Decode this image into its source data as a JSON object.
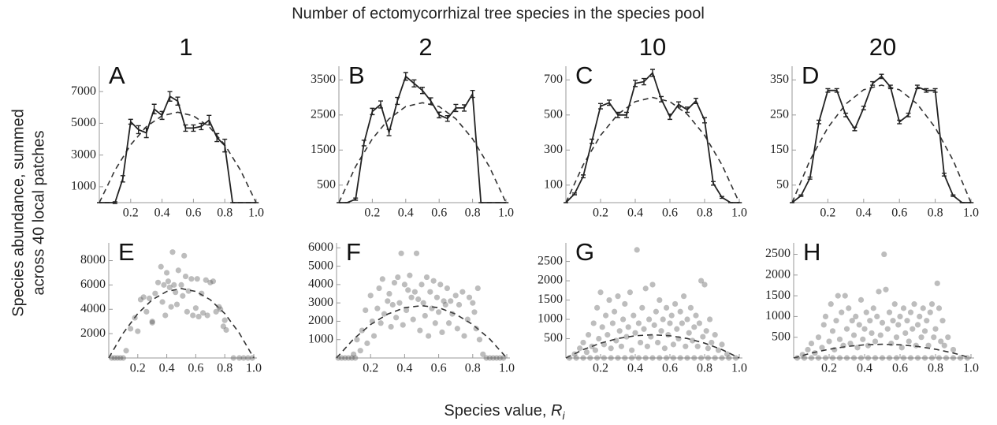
{
  "title": "Number of ectomycorrhizal tree species in the species pool",
  "column_headers": [
    "1",
    "2",
    "10",
    "20"
  ],
  "y_label": [
    "Species abundance, summed",
    "across 40 local patches"
  ],
  "x_label": {
    "text": "Species value, ",
    "variable": "R",
    "subscript": "i"
  },
  "chart_data": [
    {
      "type": "line",
      "label": "A",
      "x": [
        0,
        0.05,
        0.1,
        0.15,
        0.2,
        0.25,
        0.3,
        0.35,
        0.4,
        0.45,
        0.5,
        0.55,
        0.6,
        0.65,
        0.7,
        0.75,
        0.8,
        0.85,
        0.9,
        0.95,
        1
      ],
      "values": [
        0,
        0,
        0,
        1500,
        5100,
        4600,
        4400,
        5900,
        5500,
        6700,
        6400,
        4700,
        4700,
        4800,
        5200,
        4100,
        3600,
        0,
        0,
        0,
        0
      ],
      "errors": [
        0,
        0,
        50,
        200,
        150,
        250,
        300,
        300,
        250,
        300,
        250,
        200,
        200,
        200,
        300,
        250,
        400,
        0,
        0,
        0,
        0
      ],
      "fit": {
        "x": [
          0,
          0.1,
          0.2,
          0.3,
          0.4,
          0.5,
          0.6,
          0.7,
          0.8,
          0.9,
          1
        ],
        "values": [
          0,
          2050,
          3650,
          4790,
          5470,
          5700,
          5470,
          4790,
          3650,
          2050,
          0
        ]
      },
      "xlim": [
        0,
        1
      ],
      "ylim": [
        0,
        8400
      ],
      "xticks": [
        0.2,
        0.4,
        0.6,
        0.8,
        {
          "value": 1,
          "label": "1.0"
        }
      ],
      "yticks": [
        1000,
        3000,
        5000,
        7000
      ]
    },
    {
      "type": "line",
      "label": "B",
      "x": [
        0,
        0.05,
        0.1,
        0.15,
        0.2,
        0.25,
        0.3,
        0.35,
        0.4,
        0.45,
        0.5,
        0.55,
        0.6,
        0.65,
        0.7,
        0.75,
        0.8,
        0.85,
        0.9,
        0.95,
        1
      ],
      "values": [
        0,
        0,
        100,
        1700,
        2600,
        2800,
        2000,
        2900,
        3600,
        3400,
        3200,
        2900,
        2500,
        2400,
        2700,
        2700,
        3100,
        0,
        0,
        0,
        0
      ],
      "errors": [
        0,
        0,
        30,
        80,
        90,
        100,
        90,
        100,
        110,
        100,
        90,
        90,
        80,
        80,
        100,
        90,
        100,
        0,
        0,
        0,
        0
      ],
      "fit": {
        "x": [
          0,
          0.1,
          0.2,
          0.3,
          0.4,
          0.5,
          0.6,
          0.7,
          0.8,
          0.9,
          1
        ],
        "values": [
          0,
          1030,
          1820,
          2390,
          2740,
          2850,
          2740,
          2390,
          1820,
          1030,
          0
        ]
      },
      "xlim": [
        0,
        1
      ],
      "ylim": [
        0,
        3800
      ],
      "xticks": [
        0.2,
        0.4,
        0.6,
        0.8,
        {
          "value": 1,
          "label": "1.0"
        }
      ],
      "yticks": [
        500,
        1500,
        2500,
        3500
      ]
    },
    {
      "type": "line",
      "label": "C",
      "x": [
        0,
        0.05,
        0.1,
        0.15,
        0.2,
        0.25,
        0.3,
        0.35,
        0.4,
        0.45,
        0.5,
        0.55,
        0.6,
        0.65,
        0.7,
        0.75,
        0.8,
        0.85,
        0.9,
        0.95,
        1
      ],
      "values": [
        0,
        50,
        150,
        350,
        550,
        570,
        500,
        500,
        680,
        690,
        740,
        590,
        490,
        560,
        530,
        580,
        470,
        110,
        30,
        0,
        0
      ],
      "errors": [
        0,
        5,
        8,
        12,
        15,
        15,
        15,
        15,
        18,
        18,
        20,
        15,
        15,
        15,
        15,
        15,
        15,
        10,
        5,
        0,
        0
      ],
      "fit": {
        "x": [
          0,
          0.1,
          0.2,
          0.3,
          0.4,
          0.5,
          0.6,
          0.7,
          0.8,
          0.9,
          1
        ],
        "values": [
          0,
          216,
          384,
          504,
          576,
          600,
          576,
          504,
          384,
          216,
          0
        ]
      },
      "xlim": [
        0,
        1
      ],
      "ylim": [
        0,
        760
      ],
      "xticks": [
        0.2,
        0.4,
        0.6,
        0.8,
        {
          "value": 1,
          "label": "1.0"
        }
      ],
      "yticks": [
        100,
        300,
        500,
        700
      ]
    },
    {
      "type": "line",
      "label": "D",
      "x": [
        0,
        0.05,
        0.1,
        0.15,
        0.2,
        0.25,
        0.3,
        0.35,
        0.4,
        0.45,
        0.5,
        0.55,
        0.6,
        0.65,
        0.7,
        0.75,
        0.8,
        0.85,
        0.9,
        0.95,
        1
      ],
      "values": [
        0,
        20,
        70,
        230,
        320,
        320,
        250,
        210,
        270,
        340,
        360,
        330,
        230,
        250,
        330,
        320,
        320,
        80,
        20,
        0,
        0
      ],
      "errors": [
        0,
        2,
        3,
        5,
        5,
        5,
        5,
        5,
        5,
        5,
        6,
        5,
        5,
        5,
        5,
        5,
        5,
        4,
        2,
        0,
        0
      ],
      "fit": {
        "x": [
          0,
          0.1,
          0.2,
          0.3,
          0.4,
          0.5,
          0.6,
          0.7,
          0.8,
          0.9,
          1
        ],
        "values": [
          0,
          121,
          214,
          281,
          322,
          335,
          322,
          281,
          214,
          121,
          0
        ]
      },
      "xlim": [
        0,
        1
      ],
      "ylim": [
        0,
        380
      ],
      "xticks": [
        0.2,
        0.4,
        0.6,
        0.8,
        {
          "value": 1,
          "label": "1.0"
        }
      ],
      "yticks": [
        50,
        150,
        250,
        350
      ]
    },
    {
      "type": "scatter",
      "label": "E",
      "x": [
        0.02,
        0.04,
        0.06,
        0.08,
        0.1,
        0.86,
        0.9,
        0.93,
        0.96,
        0.99,
        0.12,
        0.15,
        0.18,
        0.2,
        0.22,
        0.24,
        0.26,
        0.28,
        0.3,
        0.3,
        0.32,
        0.34,
        0.36,
        0.37,
        0.38,
        0.39,
        0.4,
        0.41,
        0.42,
        0.43,
        0.44,
        0.45,
        0.46,
        0.47,
        0.48,
        0.5,
        0.51,
        0.52,
        0.53,
        0.54,
        0.55,
        0.57,
        0.58,
        0.6,
        0.61,
        0.62,
        0.64,
        0.65,
        0.67,
        0.68,
        0.7,
        0.72,
        0.74,
        0.76,
        0.77,
        0.79,
        0.8,
        0.81
      ],
      "values": [
        0,
        0,
        0,
        0,
        0,
        0,
        0,
        0,
        0,
        0,
        600,
        2400,
        3300,
        2200,
        4800,
        5000,
        3800,
        4900,
        3000,
        2900,
        5300,
        6200,
        7500,
        4600,
        6000,
        3500,
        7000,
        6300,
        5800,
        4200,
        8700,
        6000,
        5400,
        4400,
        7200,
        6000,
        5100,
        8400,
        6700,
        3800,
        5500,
        6500,
        3500,
        4100,
        6500,
        3400,
        5300,
        3700,
        6400,
        3500,
        6200,
        6300,
        3800,
        4200,
        4000,
        2600,
        3100,
        2300
      ],
      "fit": {
        "x": [
          0,
          0.1,
          0.2,
          0.3,
          0.4,
          0.5,
          0.6,
          0.7,
          0.8,
          0.9,
          1
        ],
        "values": [
          0,
          2050,
          3650,
          4790,
          5470,
          5700,
          5470,
          4790,
          3650,
          2050,
          0
        ]
      },
      "xlim": [
        0,
        1
      ],
      "ylim": [
        0,
        9200
      ],
      "xticks": [
        0.2,
        0.4,
        0.6,
        0.8,
        {
          "value": 1,
          "label": "1.0"
        }
      ],
      "yticks": [
        2000,
        4000,
        6000,
        8000
      ]
    },
    {
      "type": "scatter",
      "label": "F",
      "x": [
        0.01,
        0.03,
        0.05,
        0.07,
        0.09,
        0.11,
        0.88,
        0.9,
        0.92,
        0.94,
        0.96,
        0.98,
        0.1,
        0.12,
        0.14,
        0.15,
        0.17,
        0.18,
        0.2,
        0.21,
        0.22,
        0.24,
        0.25,
        0.26,
        0.27,
        0.28,
        0.3,
        0.31,
        0.32,
        0.33,
        0.34,
        0.35,
        0.36,
        0.37,
        0.38,
        0.39,
        0.4,
        0.41,
        0.42,
        0.43,
        0.44,
        0.45,
        0.46,
        0.47,
        0.48,
        0.49,
        0.5,
        0.51,
        0.52,
        0.53,
        0.54,
        0.55,
        0.56,
        0.57,
        0.58,
        0.59,
        0.6,
        0.61,
        0.62,
        0.63,
        0.64,
        0.65,
        0.66,
        0.67,
        0.68,
        0.7,
        0.71,
        0.72,
        0.74,
        0.75,
        0.77,
        0.78,
        0.8,
        0.81,
        0.82,
        0.83,
        0.84,
        0.86
      ],
      "values": [
        0,
        0,
        0,
        0,
        0,
        0,
        0,
        0,
        0,
        0,
        0,
        0,
        200,
        1000,
        400,
        1500,
        2600,
        800,
        3400,
        2000,
        1200,
        2700,
        3800,
        1900,
        4300,
        2400,
        3100,
        3500,
        1700,
        2900,
        4100,
        2200,
        4400,
        3000,
        5700,
        1800,
        4000,
        2600,
        3700,
        4500,
        3300,
        2100,
        3600,
        5700,
        3200,
        1500,
        4000,
        3000,
        2300,
        4400,
        1200,
        3600,
        2700,
        4200,
        1900,
        3300,
        2500,
        4000,
        1400,
        3100,
        2900,
        3800,
        1900,
        3100,
        2400,
        3400,
        1600,
        2900,
        3600,
        1200,
        2100,
        3300,
        3000,
        2500,
        1600,
        3800,
        1000,
        200
      ],
      "fit": {
        "x": [
          0,
          0.1,
          0.2,
          0.3,
          0.4,
          0.5,
          0.6,
          0.7,
          0.8,
          0.9,
          1
        ],
        "values": [
          0,
          1030,
          1820,
          2390,
          2740,
          2850,
          2740,
          2390,
          1820,
          1030,
          0
        ]
      },
      "xlim": [
        0,
        1
      ],
      "ylim": [
        0,
        6100
      ],
      "xticks": [
        0.2,
        0.4,
        0.6,
        0.8,
        {
          "value": 1,
          "label": "1.0"
        }
      ],
      "yticks": [
        1000,
        2000,
        3000,
        4000,
        5000,
        6000
      ]
    },
    {
      "type": "scatter",
      "label": "G",
      "x": [
        0.02,
        0.06,
        0.1,
        0.14,
        0.18,
        0.22,
        0.26,
        0.3,
        0.34,
        0.38,
        0.42,
        0.46,
        0.5,
        0.54,
        0.58,
        0.62,
        0.66,
        0.7,
        0.74,
        0.78,
        0.82,
        0.86,
        0.9,
        0.94,
        0.98,
        0.05,
        0.08,
        0.1,
        0.12,
        0.13,
        0.15,
        0.16,
        0.17,
        0.18,
        0.19,
        0.2,
        0.21,
        0.22,
        0.23,
        0.24,
        0.25,
        0.26,
        0.27,
        0.28,
        0.29,
        0.3,
        0.31,
        0.32,
        0.33,
        0.34,
        0.35,
        0.36,
        0.37,
        0.38,
        0.39,
        0.4,
        0.41,
        0.42,
        0.43,
        0.44,
        0.45,
        0.46,
        0.47,
        0.48,
        0.49,
        0.5,
        0.51,
        0.52,
        0.53,
        0.54,
        0.55,
        0.56,
        0.57,
        0.58,
        0.59,
        0.6,
        0.61,
        0.62,
        0.63,
        0.64,
        0.65,
        0.66,
        0.67,
        0.68,
        0.69,
        0.7,
        0.71,
        0.72,
        0.73,
        0.74,
        0.75,
        0.76,
        0.77,
        0.78,
        0.79,
        0.8,
        0.81,
        0.82,
        0.83,
        0.84,
        0.86,
        0.88,
        0.9,
        0.93
      ],
      "values": [
        0,
        0,
        0,
        0,
        0,
        0,
        0,
        0,
        0,
        0,
        0,
        0,
        0,
        0,
        0,
        0,
        0,
        0,
        0,
        0,
        0,
        0,
        0,
        0,
        0,
        100,
        250,
        400,
        150,
        600,
        300,
        900,
        200,
        1300,
        500,
        1700,
        800,
        350,
        1100,
        600,
        1500,
        250,
        900,
        1200,
        450,
        1600,
        700,
        300,
        1000,
        1400,
        550,
        800,
        1700,
        200,
        1100,
        650,
        2800,
        900,
        400,
        1300,
        750,
        1800,
        300,
        1000,
        550,
        1900,
        850,
        1200,
        400,
        1500,
        700,
        1000,
        250,
        1300,
        600,
        900,
        1100,
        350,
        1400,
        750,
        500,
        1200,
        900,
        1600,
        300,
        1000,
        650,
        1300,
        450,
        800,
        1100,
        300,
        900,
        2000,
        550,
        1900,
        700,
        250,
        1000,
        400,
        600,
        200,
        350,
        100
      ],
      "fit": {
        "x": [
          0,
          0.1,
          0.2,
          0.3,
          0.4,
          0.5,
          0.6,
          0.7,
          0.8,
          0.9,
          1
        ],
        "values": [
          0,
          216,
          384,
          504,
          576,
          600,
          576,
          504,
          384,
          216,
          0
        ]
      },
      "xlim": [
        0,
        1
      ],
      "ylim": [
        0,
        2900
      ],
      "xticks": [
        0.2,
        0.4,
        0.6,
        0.8,
        {
          "value": 1,
          "label": "1.0"
        }
      ],
      "yticks": [
        500,
        1000,
        1500,
        2000,
        2500
      ]
    },
    {
      "type": "scatter",
      "label": "H",
      "x": [
        0.02,
        0.06,
        0.1,
        0.14,
        0.18,
        0.22,
        0.26,
        0.3,
        0.34,
        0.38,
        0.42,
        0.46,
        0.5,
        0.54,
        0.58,
        0.62,
        0.66,
        0.7,
        0.74,
        0.78,
        0.82,
        0.86,
        0.9,
        0.94,
        0.98,
        0.05,
        0.08,
        0.1,
        0.12,
        0.14,
        0.16,
        0.17,
        0.18,
        0.2,
        0.21,
        0.22,
        0.23,
        0.24,
        0.25,
        0.26,
        0.27,
        0.28,
        0.29,
        0.3,
        0.31,
        0.32,
        0.33,
        0.34,
        0.35,
        0.36,
        0.37,
        0.38,
        0.39,
        0.4,
        0.41,
        0.42,
        0.43,
        0.44,
        0.45,
        0.46,
        0.47,
        0.48,
        0.49,
        0.5,
        0.51,
        0.52,
        0.53,
        0.54,
        0.55,
        0.56,
        0.57,
        0.58,
        0.59,
        0.6,
        0.61,
        0.62,
        0.63,
        0.64,
        0.65,
        0.66,
        0.67,
        0.68,
        0.69,
        0.7,
        0.71,
        0.72,
        0.73,
        0.74,
        0.75,
        0.76,
        0.77,
        0.78,
        0.79,
        0.8,
        0.81,
        0.82,
        0.83,
        0.84,
        0.85,
        0.87,
        0.9
      ],
      "values": [
        0,
        0,
        0,
        0,
        0,
        0,
        0,
        0,
        0,
        0,
        0,
        0,
        0,
        0,
        0,
        0,
        0,
        0,
        0,
        0,
        0,
        0,
        0,
        0,
        0,
        80,
        200,
        350,
        120,
        500,
        250,
        800,
        1000,
        400,
        1300,
        650,
        200,
        900,
        1500,
        450,
        1100,
        300,
        1500,
        700,
        1200,
        350,
        900,
        550,
        1000,
        250,
        800,
        1400,
        450,
        700,
        1100,
        300,
        900,
        600,
        1200,
        400,
        1000,
        1600,
        550,
        850,
        2500,
        1650,
        700,
        1100,
        350,
        900,
        1300,
        500,
        800,
        1000,
        250,
        1200,
        600,
        900,
        400,
        1100,
        700,
        1300,
        300,
        800,
        1000,
        500,
        1200,
        650,
        900,
        300,
        1100,
        1300,
        500,
        700,
        1800,
        1200,
        400,
        900,
        300,
        500,
        200
      ],
      "fit": {
        "x": [
          0,
          0.1,
          0.2,
          0.3,
          0.4,
          0.5,
          0.6,
          0.7,
          0.8,
          0.9,
          1
        ],
        "values": [
          0,
          119,
          211,
          277,
          317,
          330,
          317,
          277,
          211,
          119,
          0
        ]
      },
      "xlim": [
        0,
        1
      ],
      "ylim": [
        0,
        2700
      ],
      "xticks": [
        0.2,
        0.4,
        0.6,
        0.8,
        {
          "value": 1,
          "label": "1.0"
        }
      ],
      "yticks": [
        500,
        1000,
        1500,
        2000,
        2500
      ]
    }
  ]
}
